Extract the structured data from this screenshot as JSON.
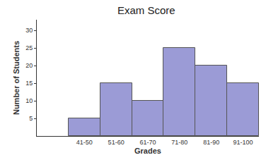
{
  "chart_data": {
    "type": "bar",
    "title": "Exam Score",
    "x_label": "Grades",
    "y_label": "Number of Students",
    "categories": [
      null,
      "41-50",
      "51-60",
      "61-70",
      "71-80",
      "81-90",
      "91-100"
    ],
    "values": [
      null,
      5,
      15,
      10,
      25,
      20,
      15
    ],
    "color": "#9b9bd6",
    "ylim": [
      0,
      33
    ],
    "yticks": [
      5,
      10,
      15,
      20,
      25,
      30
    ],
    "grid": false
  }
}
